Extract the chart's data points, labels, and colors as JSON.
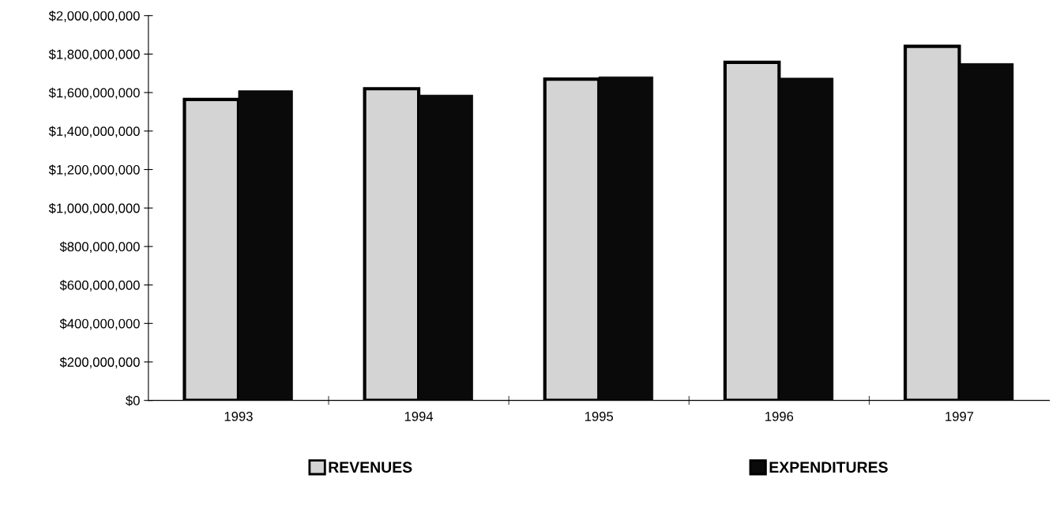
{
  "chart_data": {
    "type": "bar",
    "categories": [
      "1993",
      "1994",
      "1995",
      "1996",
      "1997"
    ],
    "series": [
      {
        "name": "REVENUES",
        "color": "#d4d4d4",
        "values": [
          1564000000,
          1620000000,
          1670000000,
          1757000000,
          1840000000
        ]
      },
      {
        "name": "EXPENDITURES",
        "color": "#0a0a0a",
        "values": [
          1610000000,
          1587000000,
          1682000000,
          1675000000,
          1751000000
        ]
      }
    ],
    "ylim": [
      0,
      2000000000
    ],
    "yticks": [
      {
        "value": 0,
        "label": "$0"
      },
      {
        "value": 200000000,
        "label": "$200,000,000"
      },
      {
        "value": 400000000,
        "label": "$400,000,000"
      },
      {
        "value": 600000000,
        "label": "$600,000,000"
      },
      {
        "value": 800000000,
        "label": "$800,000,000"
      },
      {
        "value": 1000000000,
        "label": "$1,000,000,000"
      },
      {
        "value": 1200000000,
        "label": "$1,200,000,000"
      },
      {
        "value": 1400000000,
        "label": "$1,400,000,000"
      },
      {
        "value": 1600000000,
        "label": "$1,600,000,000"
      },
      {
        "value": 1800000000,
        "label": "$1,800,000,000"
      },
      {
        "value": 2000000000,
        "label": "$2,000,000,000"
      }
    ],
    "grid": false,
    "legend": "bottom"
  }
}
